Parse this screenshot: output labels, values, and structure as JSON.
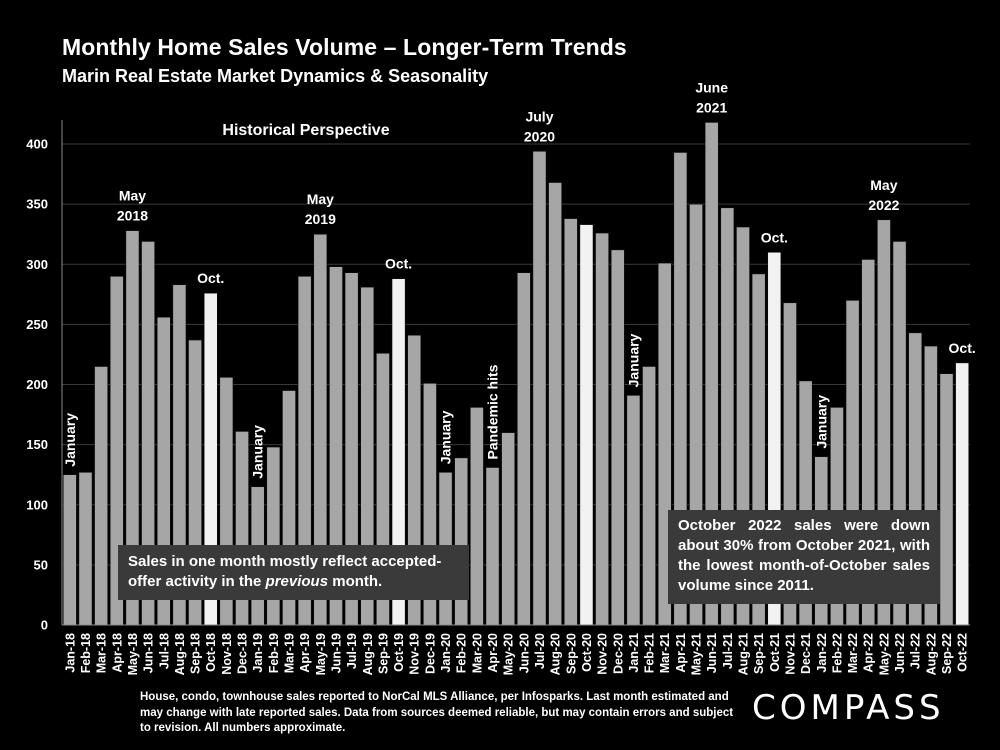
{
  "header": {
    "title": "Monthly Home Sales Volume – Longer-Term Trends",
    "subtitle": "Marin Real Estate Market Dynamics & Seasonality"
  },
  "chart_data": {
    "type": "bar",
    "title": "Monthly Home Sales Volume – Longer-Term Trends",
    "subtitle": "Marin Real Estate Market Dynamics & Seasonality",
    "xlabel": "",
    "ylabel": "",
    "ylim": [
      0,
      420
    ],
    "yticks": [
      0,
      50,
      100,
      150,
      200,
      250,
      300,
      350,
      400
    ],
    "grid": true,
    "categories": [
      "Jan-18",
      "Feb-18",
      "Mar-18",
      "Apr-18",
      "May-18",
      "Jun-18",
      "Jul-18",
      "Aug-18",
      "Sep-18",
      "Oct-18",
      "Nov-18",
      "Dec-18",
      "Jan-19",
      "Feb-19",
      "Mar-19",
      "Apr-19",
      "May-19",
      "Jun-19",
      "Jul-19",
      "Aug-19",
      "Sep-19",
      "Oct-19",
      "Nov-19",
      "Dec-19",
      "Jan-20",
      "Feb-20",
      "Mar-20",
      "Apr-20",
      "May-20",
      "Jun-20",
      "Jul-20",
      "Aug-20",
      "Sep-20",
      "Oct-20",
      "Nov-20",
      "Dec-20",
      "Jan-21",
      "Feb-21",
      "Mar-21",
      "Apr-21",
      "May-21",
      "Jun-21",
      "Jul-21",
      "Aug-21",
      "Sep-21",
      "Oct-21",
      "Nov-21",
      "Dec-21",
      "Jan-22",
      "Feb-22",
      "Mar-22",
      "Apr-22",
      "May-22",
      "Jun-22",
      "Jul-22",
      "Aug-22",
      "Sep-22",
      "Oct-22"
    ],
    "values": [
      125,
      127,
      215,
      290,
      328,
      319,
      256,
      283,
      237,
      276,
      206,
      161,
      115,
      148,
      195,
      290,
      325,
      298,
      293,
      281,
      226,
      288,
      241,
      201,
      127,
      139,
      181,
      131,
      160,
      293,
      394,
      368,
      338,
      333,
      326,
      312,
      191,
      215,
      301,
      393,
      350,
      418,
      347,
      331,
      292,
      310,
      268,
      203,
      140,
      181,
      270,
      304,
      337,
      319,
      243,
      232,
      209,
      218
    ],
    "highlighted": [
      "Oct-18",
      "Oct-19",
      "Oct-20",
      "Oct-21",
      "Oct-22"
    ],
    "series_name": "Monthly home sales",
    "annotations": [
      {
        "text": "Historical Perspective",
        "kind": "title-in-plot"
      },
      {
        "text": "January",
        "at": "Jan-18",
        "kind": "vertical"
      },
      {
        "text": "May",
        "line2": "2018",
        "at": "May-18",
        "kind": "above"
      },
      {
        "text": "Oct.",
        "at": "Oct-18",
        "kind": "above"
      },
      {
        "text": "January",
        "at": "Jan-19",
        "kind": "vertical"
      },
      {
        "text": "May",
        "line2": "2019",
        "at": "May-19",
        "kind": "above"
      },
      {
        "text": "Oct.",
        "at": "Oct-19",
        "kind": "above"
      },
      {
        "text": "January",
        "at": "Jan-20",
        "kind": "vertical"
      },
      {
        "text": "Pandemic hits",
        "at": "Apr-20",
        "kind": "vertical"
      },
      {
        "text": "July",
        "line2": "2020",
        "at": "Jul-20",
        "kind": "above"
      },
      {
        "text": "January",
        "at": "Jan-21",
        "kind": "vertical"
      },
      {
        "text": "June",
        "line2": "2021",
        "at": "Jun-21",
        "kind": "above"
      },
      {
        "text": "Oct.",
        "at": "Oct-21",
        "kind": "above"
      },
      {
        "text": "January",
        "at": "Jan-22",
        "kind": "vertical"
      },
      {
        "text": "May",
        "line2": "2022",
        "at": "May-22",
        "kind": "above"
      },
      {
        "text": "Oct.",
        "at": "Oct-22",
        "kind": "above"
      }
    ]
  },
  "notes": {
    "left_prefix": "Sales in one month mostly reflect accepted-offer activity in the ",
    "left_emphasis": "previous",
    "left_suffix": " month.",
    "right": "October 2022 sales were down about 30% from October 2021, with the lowest month-of-October sales volume since 2011."
  },
  "footer": {
    "text": "House, condo, townhouse sales reported to NorCal MLS Alliance, per Infosparks. Last month estimated and may change with late reported sales. Data from sources deemed reliable, but may contain errors and subject to revision. All numbers approximate."
  },
  "brand": {
    "logo_text": "COMPASS"
  },
  "colors": {
    "bar": "#a6a6a6",
    "highlight": "#f2f2f2",
    "grid": "#3a3a3a",
    "background": "#000000",
    "text": "#ffffff"
  }
}
